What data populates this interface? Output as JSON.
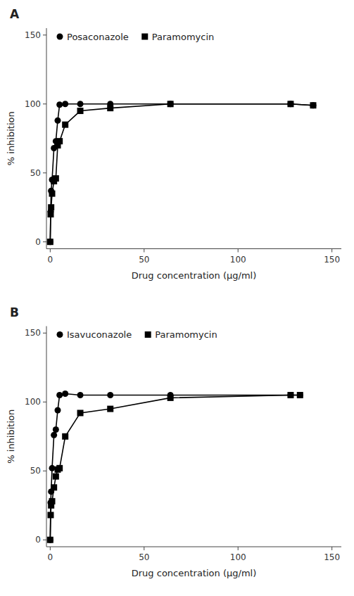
{
  "chart_data": [
    {
      "type": "line",
      "title": "A",
      "xlabel": "Drug concentration (μg/ml)",
      "ylabel": "% inhibition",
      "x": [
        0.0,
        0.25,
        0.5,
        1.0,
        2.0,
        3.0,
        4.0,
        5.0,
        8.0,
        16.0,
        32.0,
        64.0,
        128.0,
        140.0
      ],
      "series": [
        {
          "name": "Posaconazole",
          "color": "#000000",
          "marker": "circle",
          "values": [
            0.0,
            22.0,
            37.0,
            45.0,
            68.0,
            73.0,
            88.0,
            99.5,
            100.0,
            100.0,
            100.0,
            100.0,
            100.0,
            99.0
          ]
        },
        {
          "name": "Paramomycin",
          "color": "#000000",
          "marker": "square",
          "values": [
            0.0,
            20.0,
            25.0,
            35.0,
            44.0,
            46.0,
            70.0,
            73.0,
            85.0,
            95.0,
            97.0,
            100.0,
            100.0,
            99.0
          ]
        }
      ],
      "xlim": [
        -2,
        155
      ],
      "ylim": [
        -5,
        155
      ],
      "xticks": [
        0,
        50,
        100,
        150
      ],
      "yticks": [
        0,
        50,
        100,
        150
      ],
      "grid": false,
      "legend": "upper left"
    },
    {
      "type": "line",
      "title": "B",
      "xlabel": "Drug concentration (μg/ml)",
      "ylabel": "% inhibition",
      "x": [
        0.0,
        0.25,
        0.5,
        1.0,
        2.0,
        3.0,
        4.0,
        5.0,
        8.0,
        16.0,
        32.0,
        64.0,
        128.0,
        133.0
      ],
      "series": [
        {
          "name": "Isavuconazole",
          "color": "#000000",
          "marker": "circle",
          "values": [
            0.0,
            27.0,
            35.0,
            52.0,
            76.0,
            80.0,
            94.0,
            105.0,
            106.0,
            105.0,
            105.0,
            105.0,
            105.0,
            105.0
          ]
        },
        {
          "name": "Paramomycin",
          "color": "#000000",
          "marker": "square",
          "values": [
            0.0,
            18.0,
            25.0,
            28.0,
            38.0,
            46.0,
            51.0,
            52.0,
            75.0,
            92.0,
            95.0,
            103.0,
            105.0,
            105.0
          ]
        }
      ],
      "xlim": [
        -2,
        155
      ],
      "ylim": [
        -5,
        155
      ],
      "xticks": [
        0,
        50,
        100,
        150
      ],
      "yticks": [
        0,
        50,
        100,
        150
      ],
      "grid": false,
      "legend": "upper left"
    }
  ]
}
